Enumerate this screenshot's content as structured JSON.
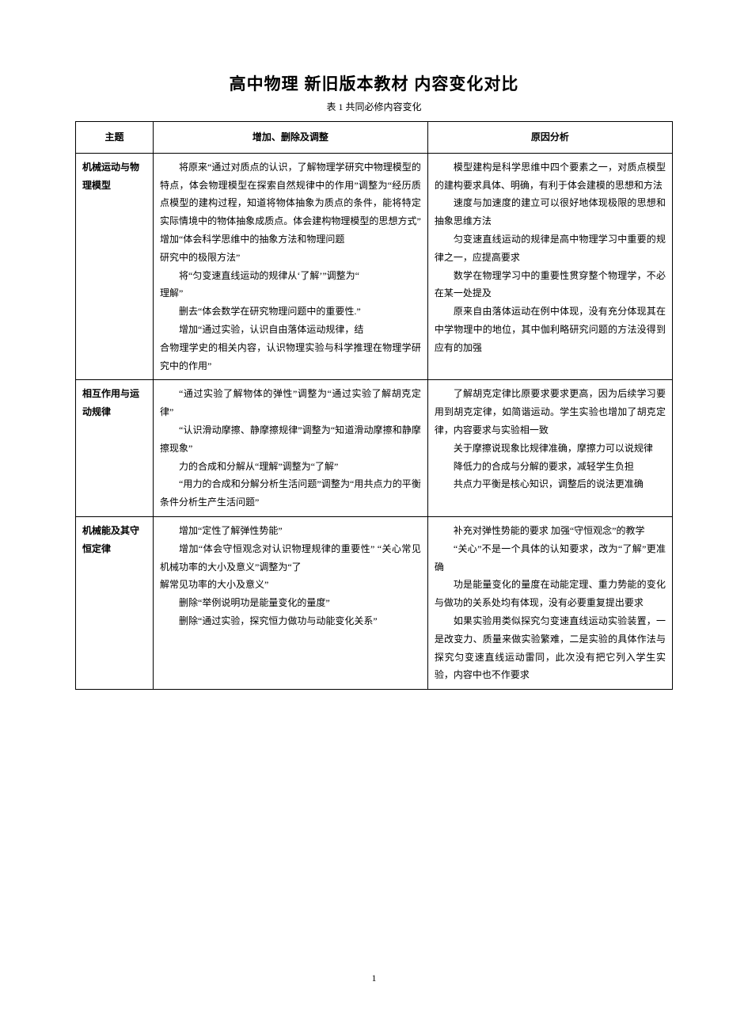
{
  "page": {
    "title": "高中物理 新旧版本教材 内容变化对比",
    "subtitle": "表 1    共同必修内容变化",
    "page_number": "1"
  },
  "table": {
    "headers": [
      "主题",
      "增加、删除及调整",
      "原因分析"
    ],
    "rows": [
      {
        "topic": "机械运动与物理模型",
        "changes": [
          "将原来“通过对质点的认识，了解物理学研究中物理模型的特点，体会物理模型在探索自然规律中的作用”调整为“经历质点模型的建构过程，知道将物体抽象为质点的条件，能将特定实际情境中的物体抽象成质点。体会建构物理模型的思想方式” 增加“体会科学思维中的抽象方法和物理问题",
          "研究中的极限方法”",
          "将“匀变速直线运动的规律从‘了解’”调整为“",
          "理解”",
          "删去“体会数学在研究物理问题中的重要性.”",
          "增加“通过实验，认识自由落体运动规律，结",
          "合物理学史的相关内容，认识物理实验与科学推理在物理学研究中的作用”"
        ],
        "reasons": [
          "模型建构是科学思维中四个要素之一，对质点模型的建构要求具体、明确，有利于体会建模的思想和方法",
          "速度与加速度的建立可以很好地体现极限的思想和抽象思维方法",
          "匀变速直线运动的规律是高中物理学习中重要的规律之一，应提高要求",
          "数学在物理学习中的重要性贯穿整个物理学，不必在某一处提及",
          "原来自由落体运动在例中体现，没有充分体现其在中学物理中的地位，其中伽利略研究问题的方法没得到应有的加强"
        ]
      },
      {
        "topic": "相互作用与运动规律",
        "changes": [
          "“通过实验了解物体的弹性”调整为“通过实验了解胡克定律”",
          "“认识滑动摩擦、静摩擦规律”调整为“知道滑动摩擦和静摩擦现象”",
          "力的合成和分解从“理解”调整为“了解”",
          "“用力的合成和分解分析生活问题”调整为“用共点力的平衡条件分析生产生活问题”"
        ],
        "reasons": [
          "了解胡克定律比原要求要求更高，因为后续学习要用到胡克定律，如简谐运动。学生实验也增加了胡克定律，内容要求与实验相一致",
          "关于摩擦说现象比规律准确，摩擦力可以说规律",
          "降低力的合成与分解的要求，减轻学生负担",
          "共点力平衡是核心知识，调整后的说法更准确"
        ]
      },
      {
        "topic": "机械能及其守恒定律",
        "changes": [
          "增加“定性了解弹性势能”",
          "增加“体会守恒观念对认识物理规律的重要性” “关心常见机械功率的大小及意义”调整为“了",
          "解常见功率的大小及意义”",
          "删除“举例说明功是能量变化的量度”",
          "删除“通过实验，探究恒力做功与动能变化关系”"
        ],
        "reasons": [
          "补充对弹性势能的要求 加强“守恒观念”的教学",
          "“关心”不是一个具体的认知要求，改为“了解”更准确",
          "功是能量变化的量度在动能定理、重力势能的变化与做功的关系处均有体现，没有必要重复提出要求",
          "如果实验用类似探究匀变速直线运动实验装置，一是改变力、质量来做实验繁难，二是实验的具体作法与探究匀变速直线运动雷同，此次没有把它列入学生实验，内容中也不作要求"
        ]
      }
    ]
  }
}
